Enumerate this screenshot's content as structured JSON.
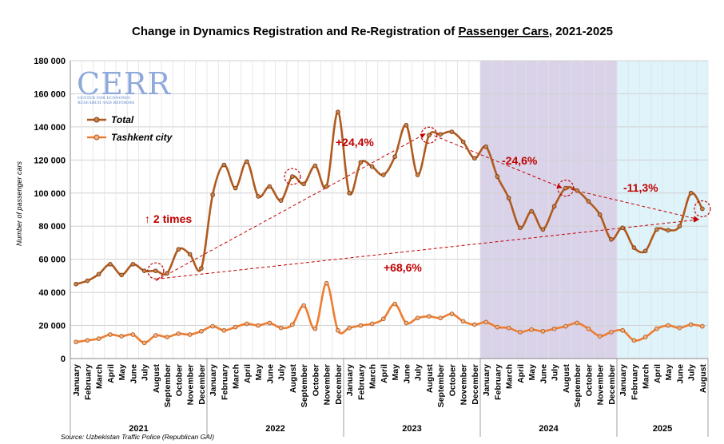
{
  "chart_data": {
    "type": "line",
    "title_parts": [
      "Change in Dynamics Registration and Re-Registration of ",
      "Passenger Cars",
      ", 2021-2025"
    ],
    "ylabel": "Number of passenger cars",
    "ylim": [
      0,
      180000
    ],
    "yticks": [
      0,
      20000,
      40000,
      60000,
      80000,
      100000,
      120000,
      140000,
      160000,
      180000
    ],
    "ytick_labels": [
      "0",
      "20 000",
      "40 000",
      "60 000",
      "80 000",
      "100 000",
      "120 000",
      "140 000",
      "160 000",
      "180 000"
    ],
    "grid": true,
    "legend_position": "upper-left",
    "categories": [
      "January",
      "February",
      "March",
      "April",
      "May",
      "June",
      "July",
      "August",
      "September",
      "October",
      "November",
      "December",
      "January",
      "February",
      "March",
      "April",
      "May",
      "June",
      "July",
      "August",
      "September",
      "October",
      "November",
      "December",
      "January",
      "February",
      "March",
      "April",
      "May",
      "June",
      "July",
      "August",
      "September",
      "October",
      "November",
      "December",
      "January",
      "February",
      "March",
      "April",
      "May",
      "June",
      "July",
      "August",
      "September",
      "October",
      "November",
      "December",
      "January",
      "February",
      "March",
      "April",
      "May",
      "June",
      "July",
      "August"
    ],
    "years": [
      {
        "label": "2021",
        "start": 0,
        "end": 11
      },
      {
        "label": "2022",
        "start": 12,
        "end": 23
      },
      {
        "label": "2023",
        "start": 24,
        "end": 35
      },
      {
        "label": "2024",
        "start": 36,
        "end": 47
      },
      {
        "label": "2025",
        "start": 48,
        "end": 55
      }
    ],
    "shaded_periods": [
      {
        "start": 36,
        "end": 47,
        "color": "#d9d2e9"
      },
      {
        "start": 48,
        "end": 55,
        "color": "#dff3fa"
      }
    ],
    "series": [
      {
        "name": "Total",
        "color": "#b05a1e",
        "values": [
          45000,
          47000,
          51000,
          57000,
          50500,
          57000,
          53000,
          53000,
          51500,
          66000,
          63000,
          54500,
          99000,
          117000,
          103000,
          119000,
          98000,
          104000,
          95500,
          110000,
          105500,
          116500,
          104000,
          149000,
          100000,
          118500,
          116000,
          111000,
          122000,
          141000,
          111000,
          135000,
          135500,
          137000,
          131000,
          121000,
          128000,
          110000,
          97000,
          79000,
          89000,
          78000,
          92000,
          103000,
          101500,
          95000,
          87000,
          72000,
          79000,
          67000,
          65000,
          78000,
          77500,
          80000,
          100000,
          90500
        ]
      },
      {
        "name": "Tashkent city",
        "color": "#ed7d31",
        "values": [
          10000,
          11000,
          12000,
          14500,
          13500,
          14500,
          9500,
          14000,
          13000,
          15000,
          14500,
          16500,
          19500,
          17000,
          19000,
          21000,
          20000,
          21500,
          18500,
          20500,
          32000,
          18000,
          45500,
          17000,
          18500,
          20000,
          21000,
          24000,
          33000,
          21500,
          24500,
          25500,
          24500,
          27000,
          22500,
          20500,
          22000,
          19000,
          18500,
          16000,
          17500,
          16500,
          18000,
          19500,
          21500,
          18000,
          13500,
          16000,
          17000,
          11000,
          13000,
          18000,
          20000,
          18500,
          20500,
          19500
        ]
      }
    ],
    "annotations": [
      {
        "text": "↑ 2 times",
        "from": 7,
        "to": 19
      },
      {
        "text": "+24,4%",
        "from": 19,
        "to": 31
      },
      {
        "text": "-24,6%",
        "from": 31,
        "to": 43
      },
      {
        "text": "-11,3%",
        "from": 43,
        "to": 55
      },
      {
        "text": "+68,6%",
        "from": 7,
        "to": 55
      }
    ]
  },
  "logo": {
    "main": "CERR",
    "sub_line1": "CENTER FOR ECONOMIC",
    "sub_line2": "RESEARCH AND REFORMS"
  },
  "source": "Source: Uzbekistan Traffic Police (Republican GAI)"
}
